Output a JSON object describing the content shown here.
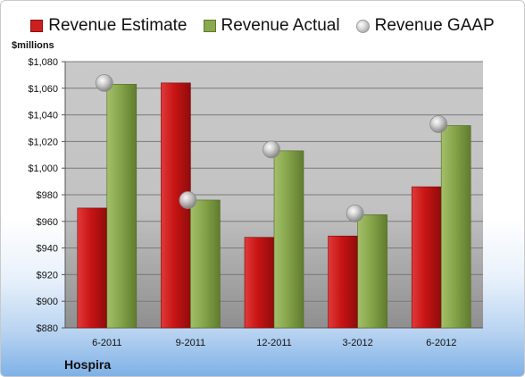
{
  "chart_data": {
    "type": "bar",
    "categories": [
      "6-2011",
      "9-2011",
      "12-2011",
      "3-2012",
      "6-2012"
    ],
    "series": [
      {
        "name": "Revenue Estimate",
        "color": "#cc1f1f",
        "kind": "bar",
        "values": [
          970,
          1064,
          948,
          949,
          986
        ]
      },
      {
        "name": "Revenue Actual",
        "color": "#8aa94e",
        "kind": "bar",
        "values": [
          1063,
          976,
          1013,
          965,
          1032
        ]
      },
      {
        "name": "Revenue GAAP",
        "color": "#b0b0b0",
        "kind": "marker",
        "values": [
          1064,
          976,
          1014,
          966,
          1033
        ]
      }
    ],
    "ylabel": "$millions",
    "ylim": [
      880,
      1080
    ],
    "yticks": [
      "$880",
      "$900",
      "$920",
      "$940",
      "$960",
      "$980",
      "$1,000",
      "$1,020",
      "$1,040",
      "$1,060",
      "$1,080"
    ],
    "company": "Hospira",
    "legend_position": "top",
    "grid": true
  }
}
